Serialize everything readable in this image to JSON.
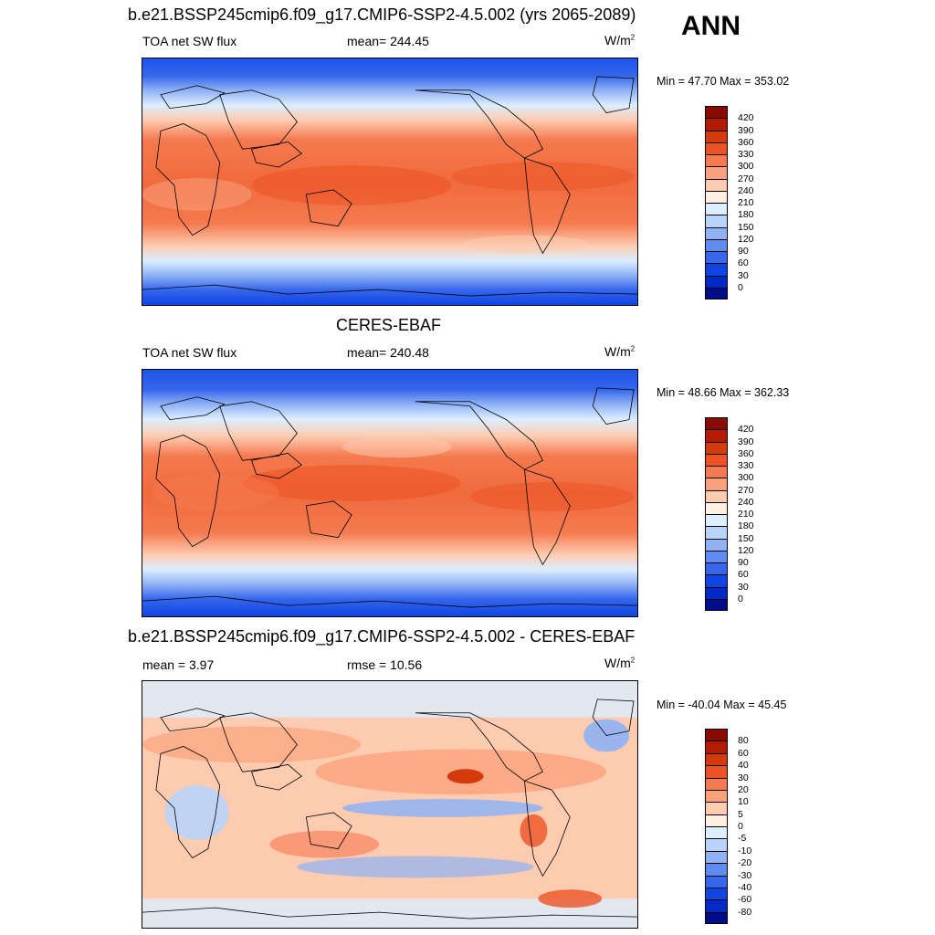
{
  "season": "ANN",
  "panels": [
    {
      "title": "b.e21.BSSP245cmip6.f09_g17.CMIP6-SSP2-4.5.002 (yrs 2065-2089)",
      "left_label": "TOA net SW flux",
      "center_label": "mean= 244.45",
      "units": "W/m",
      "units_sup": "2",
      "minmax": "Min =  47.70 Max = 353.02",
      "colorbar": {
        "levels": [
          "420",
          "390",
          "360",
          "330",
          "300",
          "270",
          "240",
          "210",
          "180",
          "150",
          "120",
          "90",
          "60",
          "30",
          "0"
        ],
        "colors": [
          "#8b0a00",
          "#b21b00",
          "#d43a0b",
          "#ec5223",
          "#f57a4f",
          "#fba27c",
          "#fdcbb0",
          "#fff0e2",
          "#dceeff",
          "#b9d4fa",
          "#8fb2f5",
          "#5e8cf0",
          "#3566ec",
          "#0f45e3",
          "#0029c5",
          "#000d8a"
        ]
      }
    },
    {
      "title": "CERES-EBAF",
      "left_label": "TOA net SW flux",
      "center_label": "mean= 240.48",
      "units": "W/m",
      "units_sup": "2",
      "minmax": "Min =  48.66 Max = 362.33",
      "colorbar": {
        "levels": [
          "420",
          "390",
          "360",
          "330",
          "300",
          "270",
          "240",
          "210",
          "180",
          "150",
          "120",
          "90",
          "60",
          "30",
          "0"
        ],
        "colors": [
          "#8b0a00",
          "#b21b00",
          "#d43a0b",
          "#ec5223",
          "#f57a4f",
          "#fba27c",
          "#fdcbb0",
          "#fff0e2",
          "#dceeff",
          "#b9d4fa",
          "#8fb2f5",
          "#5e8cf0",
          "#3566ec",
          "#0f45e3",
          "#0029c5",
          "#000d8a"
        ]
      }
    },
    {
      "title": "b.e21.BSSP245cmip6.f09_g17.CMIP6-SSP2-4.5.002 - CERES-EBAF",
      "left_label": "mean =   3.97",
      "center_label": "rmse =  10.56",
      "units": "W/m",
      "units_sup": "2",
      "minmax": "Min = -40.04 Max =  45.45",
      "colorbar": {
        "levels": [
          "80",
          "60",
          "40",
          "30",
          "20",
          "10",
          "5",
          "0",
          "-5",
          "-10",
          "-20",
          "-30",
          "-40",
          "-60",
          "-80"
        ],
        "colors": [
          "#8b0a00",
          "#b21b00",
          "#d43a0b",
          "#ec5223",
          "#f57a4f",
          "#fba27c",
          "#fdcbb0",
          "#fff0e2",
          "#dceeff",
          "#b9d4fa",
          "#8fb2f5",
          "#5e8cf0",
          "#3566ec",
          "#0f45e3",
          "#0029c5",
          "#000d8a"
        ]
      }
    }
  ],
  "chart_data": [
    {
      "type": "heatmap",
      "title": "b.e21.BSSP245cmip6.f09_g17.CMIP6-SSP2-4.5.002 (yrs 2065-2089)",
      "variable": "TOA net SW flux",
      "units": "W/m2",
      "mean": 244.45,
      "min": 47.7,
      "max": 353.02,
      "contour_levels": [
        0,
        30,
        60,
        90,
        120,
        150,
        180,
        210,
        240,
        270,
        300,
        330,
        360,
        390,
        420
      ]
    },
    {
      "type": "heatmap",
      "title": "CERES-EBAF",
      "variable": "TOA net SW flux",
      "units": "W/m2",
      "mean": 240.48,
      "min": 48.66,
      "max": 362.33,
      "contour_levels": [
        0,
        30,
        60,
        90,
        120,
        150,
        180,
        210,
        240,
        270,
        300,
        330,
        360,
        390,
        420
      ]
    },
    {
      "type": "heatmap",
      "title": "b.e21.BSSP245cmip6.f09_g17.CMIP6-SSP2-4.5.002 - CERES-EBAF",
      "units": "W/m2",
      "mean": 3.97,
      "rmse": 10.56,
      "min": -40.04,
      "max": 45.45,
      "contour_levels": [
        -80,
        -60,
        -40,
        -30,
        -20,
        -10,
        -5,
        0,
        5,
        10,
        20,
        30,
        40,
        60,
        80
      ]
    }
  ]
}
